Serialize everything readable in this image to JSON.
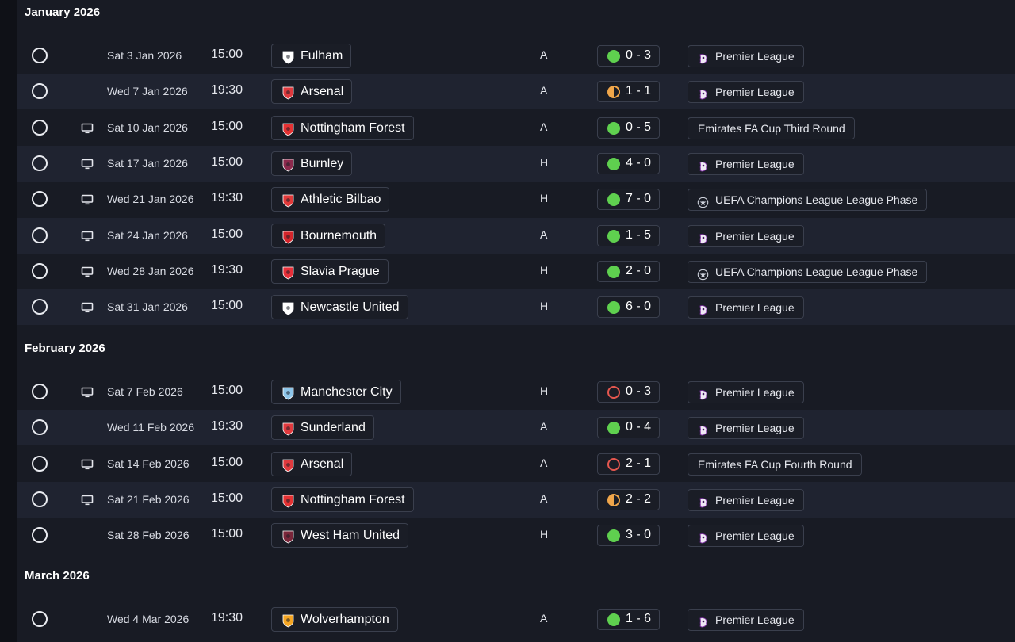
{
  "months": [
    {
      "title": "January 2026",
      "matches": [
        {
          "tv": false,
          "date": "Sat 3 Jan 2026",
          "time": "15:00",
          "opponent": "Fulham",
          "crest": "fulham-crest-icon",
          "crest_color": "#ffffff",
          "venue": "A",
          "outcome": "win",
          "score": "0 - 3",
          "competition": "Premier League",
          "comp_icon": "premier-league-icon"
        },
        {
          "tv": false,
          "date": "Wed 7 Jan 2026",
          "time": "19:30",
          "opponent": "Arsenal",
          "crest": "arsenal-crest-icon",
          "crest_color": "#e03a3e",
          "venue": "A",
          "outcome": "draw",
          "score": "1 - 1",
          "competition": "Premier League",
          "comp_icon": "premier-league-icon"
        },
        {
          "tv": true,
          "date": "Sat 10 Jan 2026",
          "time": "15:00",
          "opponent": "Nottingham Forest",
          "crest": "nottingham-forest-crest-icon",
          "crest_color": "#e53233",
          "venue": "A",
          "outcome": "win",
          "score": "0 - 5",
          "competition": "Emirates FA Cup Third Round",
          "comp_icon": ""
        },
        {
          "tv": true,
          "date": "Sat 17 Jan 2026",
          "time": "15:00",
          "opponent": "Burnley",
          "crest": "burnley-crest-icon",
          "crest_color": "#8c2a4d",
          "venue": "H",
          "outcome": "win",
          "score": "4 - 0",
          "competition": "Premier League",
          "comp_icon": "premier-league-icon"
        },
        {
          "tv": true,
          "date": "Wed 21 Jan 2026",
          "time": "19:30",
          "opponent": "Athletic Bilbao",
          "crest": "athletic-bilbao-crest-icon",
          "crest_color": "#e13a3a",
          "venue": "H",
          "outcome": "win",
          "score": "7 - 0",
          "competition": "UEFA Champions League League Phase",
          "comp_icon": "champions-league-icon"
        },
        {
          "tv": true,
          "date": "Sat 24 Jan 2026",
          "time": "15:00",
          "opponent": "Bournemouth",
          "crest": "bournemouth-crest-icon",
          "crest_color": "#d4252b",
          "venue": "A",
          "outcome": "win",
          "score": "1 - 5",
          "competition": "Premier League",
          "comp_icon": "premier-league-icon"
        },
        {
          "tv": true,
          "date": "Wed 28 Jan 2026",
          "time": "19:30",
          "opponent": "Slavia Prague",
          "crest": "slavia-prague-crest-icon",
          "crest_color": "#e8303a",
          "venue": "H",
          "outcome": "win",
          "score": "2 - 0",
          "competition": "UEFA Champions League League Phase",
          "comp_icon": "champions-league-icon"
        },
        {
          "tv": true,
          "date": "Sat 31 Jan 2026",
          "time": "15:00",
          "opponent": "Newcastle United",
          "crest": "newcastle-united-crest-icon",
          "crest_color": "#ffffff",
          "venue": "H",
          "outcome": "win",
          "score": "6 - 0",
          "competition": "Premier League",
          "comp_icon": "premier-league-icon"
        }
      ]
    },
    {
      "title": "February 2026",
      "matches": [
        {
          "tv": true,
          "date": "Sat 7 Feb 2026",
          "time": "15:00",
          "opponent": "Manchester City",
          "crest": "manchester-city-crest-icon",
          "crest_color": "#8ec6ea",
          "venue": "H",
          "outcome": "loss",
          "score": "0 - 3",
          "competition": "Premier League",
          "comp_icon": "premier-league-icon"
        },
        {
          "tv": false,
          "date": "Wed 11 Feb 2026",
          "time": "19:30",
          "opponent": "Sunderland",
          "crest": "sunderland-crest-icon",
          "crest_color": "#e03a3e",
          "venue": "A",
          "outcome": "win",
          "score": "0 - 4",
          "competition": "Premier League",
          "comp_icon": "premier-league-icon"
        },
        {
          "tv": true,
          "date": "Sat 14 Feb 2026",
          "time": "15:00",
          "opponent": "Arsenal",
          "crest": "arsenal-crest-icon",
          "crest_color": "#e03a3e",
          "venue": "A",
          "outcome": "loss",
          "score": "2 - 1",
          "competition": "Emirates FA Cup Fourth Round",
          "comp_icon": ""
        },
        {
          "tv": true,
          "date": "Sat 21 Feb 2026",
          "time": "15:00",
          "opponent": "Nottingham Forest",
          "crest": "nottingham-forest-crest-icon",
          "crest_color": "#e53233",
          "venue": "A",
          "outcome": "draw",
          "score": "2 - 2",
          "competition": "Premier League",
          "comp_icon": "premier-league-icon"
        },
        {
          "tv": false,
          "date": "Sat 28 Feb 2026",
          "time": "15:00",
          "opponent": "West Ham United",
          "crest": "west-ham-crest-icon",
          "crest_color": "#7a263a",
          "venue": "H",
          "outcome": "win",
          "score": "3 - 0",
          "competition": "Premier League",
          "comp_icon": "premier-league-icon"
        }
      ]
    },
    {
      "title": "March 2026",
      "matches": [
        {
          "tv": false,
          "date": "Wed 4 Mar 2026",
          "time": "19:30",
          "opponent": "Wolverhampton",
          "crest": "wolverhampton-crest-icon",
          "crest_color": "#f5a623",
          "venue": "A",
          "outcome": "win",
          "score": "1 - 6",
          "competition": "Premier League",
          "comp_icon": "premier-league-icon"
        }
      ]
    }
  ]
}
